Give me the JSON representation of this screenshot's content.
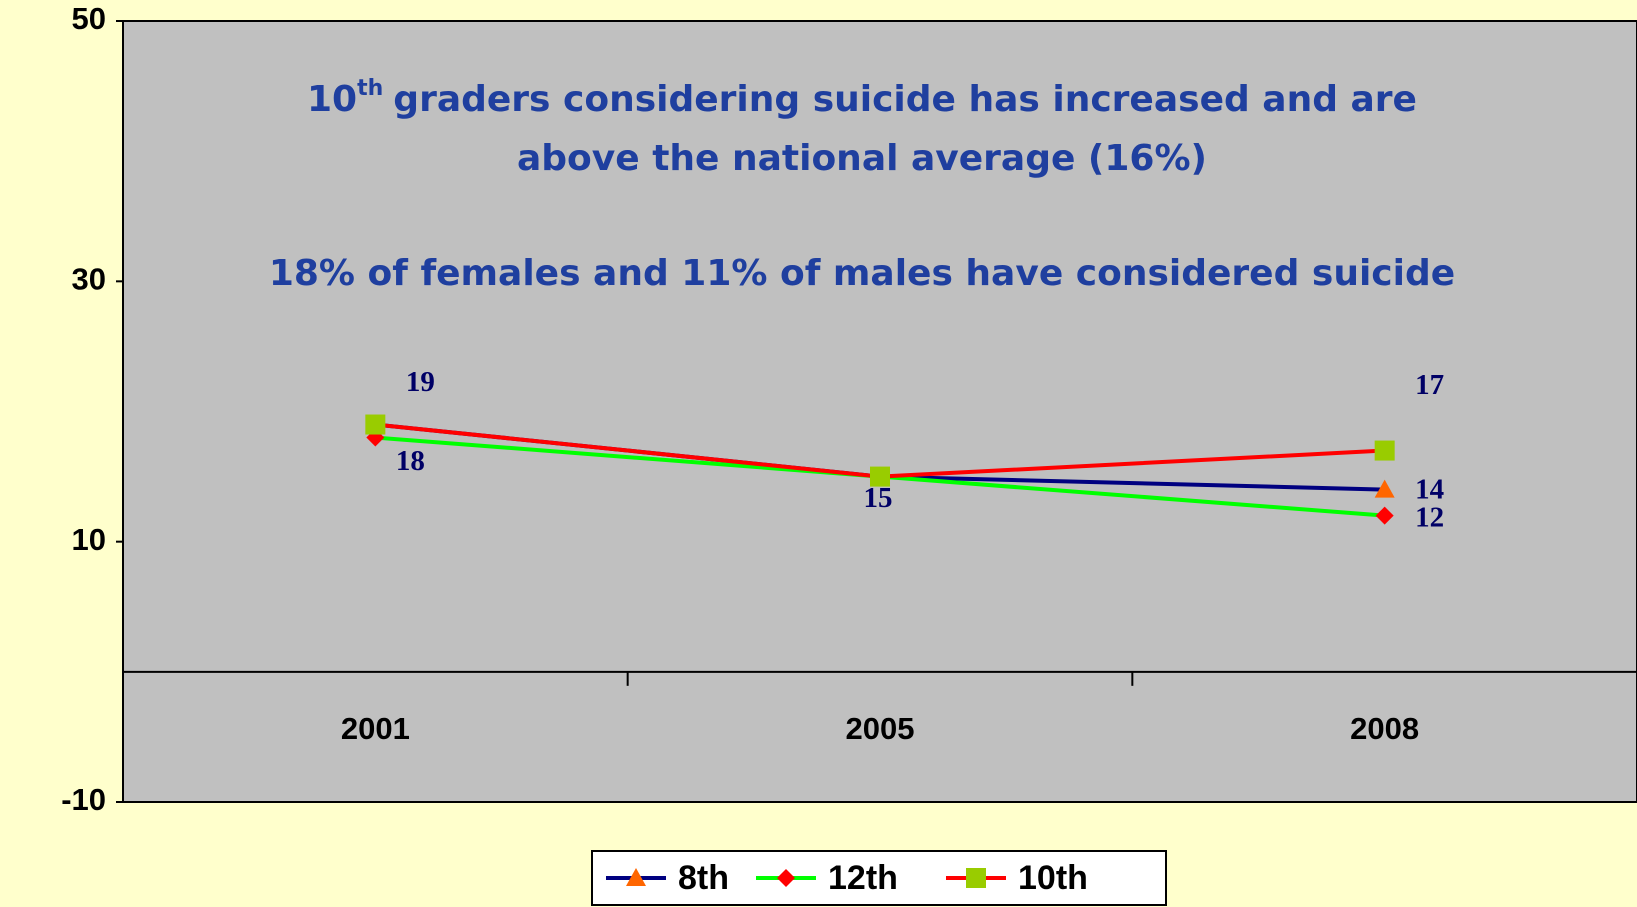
{
  "chart_data": {
    "type": "line",
    "annotation": {
      "number": "10",
      "superscript": "th",
      "line1": "graders considering suicide has increased and are",
      "line2": "above the national average (16%)"
    },
    "subtitle": "18% of females and 11% of males have considered suicide",
    "categories": [
      "2001",
      "2005",
      "2008"
    ],
    "series": [
      {
        "name": "8th",
        "color": "#000080",
        "marker": "triangle",
        "marker_color": "#ff6600",
        "values": [
          19,
          15,
          14
        ]
      },
      {
        "name": "12th",
        "color": "#00ff00",
        "marker": "diamond",
        "marker_color": "#ff0000",
        "values": [
          18,
          15,
          12
        ]
      },
      {
        "name": "10th",
        "color": "#ff0000",
        "marker": "square",
        "marker_color": "#99cc00",
        "values": [
          19,
          15,
          17
        ]
      }
    ],
    "ylim": [
      -10,
      50
    ],
    "yticks": [
      -10,
      10,
      30,
      50
    ],
    "legend": "bottom"
  }
}
